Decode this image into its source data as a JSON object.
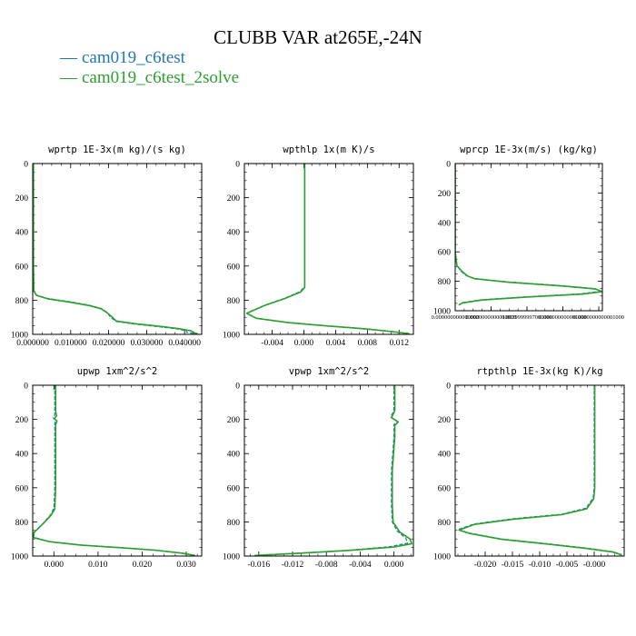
{
  "figure": {
    "title": "CLUBB VAR at265E,-24N",
    "colors": {
      "series1": "#1f77b4",
      "series2": "#2ca02c",
      "axis": "#000000"
    },
    "legend": [
      {
        "symbol": "—",
        "label": "cam019_c6test",
        "color": "#1f77b4"
      },
      {
        "symbol": "—",
        "label": "cam019_c6test_2solve",
        "color": "#2ca02c"
      }
    ]
  },
  "chart_data": [
    {
      "type": "line",
      "title": "wprtp  1E-3x(m kg)/(s kg)",
      "xlim": [
        0,
        0.0445
      ],
      "ylim": [
        0,
        1000
      ],
      "y_inverted": true,
      "xticks": [
        0,
        0.01,
        0.02,
        0.03,
        0.04
      ],
      "xtick_labels": [
        "0.000000",
        "0.010000",
        "0.020000",
        "0.030000",
        "0.040000"
      ],
      "yticks": [
        0,
        200,
        400,
        600,
        800,
        1000
      ],
      "ytick_labels": [
        "0",
        "200",
        "400",
        "600",
        "800",
        "1000"
      ],
      "series": [
        {
          "name": "cam019_c6test",
          "points": [
            [
              0.0002,
              0
            ],
            [
              0.0002,
              200
            ],
            [
              0.0002,
              400
            ],
            [
              0.0002,
              600
            ],
            [
              0.0003,
              740
            ],
            [
              0.001,
              770
            ],
            [
              0.004,
              790
            ],
            [
              0.01,
              810
            ],
            [
              0.015,
              830
            ],
            [
              0.018,
              848
            ],
            [
              0.0195,
              870
            ],
            [
              0.0205,
              900
            ],
            [
              0.022,
              925
            ],
            [
              0.027,
              940
            ],
            [
              0.033,
              955
            ],
            [
              0.038,
              968
            ],
            [
              0.0405,
              980
            ],
            [
              0.0405,
              988
            ],
            [
              0.043,
              998
            ]
          ]
        },
        {
          "name": "cam019_c6test_2solve",
          "points": [
            [
              0.0002,
              0
            ],
            [
              0.0002,
              200
            ],
            [
              0.0002,
              400
            ],
            [
              0.0002,
              600
            ],
            [
              0.0003,
              745
            ],
            [
              0.001,
              772
            ],
            [
              0.004,
              792
            ],
            [
              0.01,
              812
            ],
            [
              0.015,
              832
            ],
            [
              0.018,
              850
            ],
            [
              0.0195,
              872
            ],
            [
              0.021,
              900
            ],
            [
              0.022,
              922
            ],
            [
              0.027,
              938
            ],
            [
              0.033,
              952
            ],
            [
              0.038,
              965
            ],
            [
              0.0415,
              978
            ],
            [
              0.0425,
              990
            ],
            [
              0.0435,
              998
            ]
          ]
        }
      ]
    },
    {
      "type": "line",
      "title": "wpthlp  1x(m K)/s",
      "xlim": [
        -0.0075,
        0.0138
      ],
      "ylim": [
        0,
        1000
      ],
      "y_inverted": true,
      "xticks": [
        -0.004,
        0,
        0.004,
        0.008,
        0.012
      ],
      "xtick_labels": [
        "-0.004",
        "0.000",
        "0.004",
        "0.008",
        "0.012"
      ],
      "yticks": [
        0,
        200,
        400,
        600,
        800,
        1000
      ],
      "ytick_labels": [
        "0",
        "200",
        "400",
        "600",
        "800",
        "1000"
      ],
      "series": [
        {
          "name": "cam019_c6test",
          "points": [
            [
              0.0001,
              0
            ],
            [
              0.0001,
              300
            ],
            [
              0.0001,
              600
            ],
            [
              0.0001,
              720
            ],
            [
              -0.0005,
              750
            ],
            [
              -0.0025,
              790
            ],
            [
              -0.005,
              830
            ],
            [
              -0.0072,
              875
            ],
            [
              -0.006,
              905
            ],
            [
              -0.002,
              930
            ],
            [
              0.003,
              950
            ],
            [
              0.008,
              968
            ],
            [
              0.0115,
              985
            ],
            [
              0.0133,
              996
            ]
          ]
        },
        {
          "name": "cam019_c6test_2solve",
          "points": [
            [
              0.0001,
              0
            ],
            [
              0.0001,
              300
            ],
            [
              0.0001,
              600
            ],
            [
              0.0001,
              725
            ],
            [
              -0.0004,
              752
            ],
            [
              -0.0025,
              792
            ],
            [
              -0.005,
              832
            ],
            [
              -0.0072,
              877
            ],
            [
              -0.006,
              906
            ],
            [
              -0.002,
              931
            ],
            [
              0.003,
              951
            ],
            [
              0.008,
              969
            ],
            [
              0.0115,
              986
            ],
            [
              0.0133,
              997
            ]
          ]
        }
      ]
    },
    {
      "type": "line",
      "title": "wprcp  1E-3x(m/s) (kg/kg)",
      "xlim": [
        0,
        0.0082
      ],
      "ylim": [
        0,
        1000
      ],
      "y_inverted": true,
      "xticks": [
        0,
        0.002,
        0.004,
        0.006,
        0.008
      ],
      "xtick_labels": [
        "0.000000000000000",
        "0.0020000000010000",
        "0.0039999997000000",
        "0.006000000001000",
        "0.0080000000001000"
      ],
      "yticks": [
        0,
        200,
        400,
        600,
        800,
        1000
      ],
      "ytick_labels": [
        "0",
        "200",
        "400",
        "600",
        "800",
        "1000"
      ],
      "series": [
        {
          "name": "cam019_c6test",
          "points": [
            [
              0,
              0
            ],
            [
              0,
              300
            ],
            [
              0,
              600
            ],
            [
              0.0001,
              690
            ],
            [
              0.0003,
              730
            ],
            [
              0.0006,
              760
            ],
            [
              0.001,
              780
            ],
            [
              0.003,
              805
            ],
            [
              0.006,
              830
            ],
            [
              0.0078,
              850
            ],
            [
              0.0081,
              868
            ],
            [
              0.007,
              885
            ],
            [
              0.004,
              905
            ],
            [
              0.0015,
              925
            ],
            [
              0.0004,
              945
            ],
            [
              0.0002,
              960
            ]
          ]
        },
        {
          "name": "cam019_c6test_2solve",
          "points": [
            [
              0,
              0
            ],
            [
              0,
              300
            ],
            [
              0,
              600
            ],
            [
              0.0001,
              695
            ],
            [
              0.0004,
              735
            ],
            [
              0.0007,
              765
            ],
            [
              0.0011,
              783
            ],
            [
              0.003,
              807
            ],
            [
              0.006,
              832
            ],
            [
              0.0078,
              852
            ],
            [
              0.0082,
              870
            ],
            [
              0.0071,
              887
            ],
            [
              0.004,
              907
            ],
            [
              0.0015,
              927
            ],
            [
              0.0004,
              947
            ],
            [
              0.0002,
              962
            ]
          ]
        }
      ]
    },
    {
      "type": "line",
      "title": "upwp  1xm^2/s^2",
      "xlim": [
        -0.0048,
        0.0335
      ],
      "ylim": [
        0,
        1000
      ],
      "y_inverted": true,
      "xticks": [
        0,
        0.01,
        0.02,
        0.03
      ],
      "xtick_labels": [
        "0.000",
        "0.010",
        "0.020",
        "0.030"
      ],
      "yticks": [
        0,
        200,
        400,
        600,
        800,
        1000
      ],
      "ytick_labels": [
        "0",
        "200",
        "400",
        "600",
        "800",
        "1000"
      ],
      "series": [
        {
          "name": "cam019_c6test",
          "points": [
            [
              0.0002,
              0
            ],
            [
              0.0002,
              150
            ],
            [
              0.0002,
              175
            ],
            [
              -0.0002,
              190
            ],
            [
              0.0004,
              205
            ],
            [
              0.0002,
              225
            ],
            [
              0.0002,
              400
            ],
            [
              0.0002,
              600
            ],
            [
              0,
              720
            ],
            [
              -0.0008,
              760
            ],
            [
              -0.0025,
              810
            ],
            [
              -0.0045,
              860
            ],
            [
              -0.0046,
              890
            ],
            [
              -0.001,
              915
            ],
            [
              0.006,
              935
            ],
            [
              0.015,
              950
            ],
            [
              0.023,
              965
            ],
            [
              0.029,
              982
            ],
            [
              0.032,
              996
            ]
          ]
        },
        {
          "name": "cam019_c6test_2solve",
          "points": [
            [
              0.0004,
              0
            ],
            [
              0.0004,
              150
            ],
            [
              0.0006,
              180
            ],
            [
              0.0001,
              195
            ],
            [
              0.0007,
              210
            ],
            [
              0.0004,
              230
            ],
            [
              0.0004,
              400
            ],
            [
              0.0004,
              600
            ],
            [
              0.0002,
              725
            ],
            [
              -0.0007,
              763
            ],
            [
              -0.0025,
              812
            ],
            [
              -0.0045,
              862
            ],
            [
              -0.0046,
              892
            ],
            [
              -0.001,
              916
            ],
            [
              0.006,
              936
            ],
            [
              0.015,
              951
            ],
            [
              0.023,
              966
            ],
            [
              0.029,
              983
            ],
            [
              0.032,
              997
            ]
          ]
        }
      ]
    },
    {
      "type": "line",
      "title": "vpwp  1xm^2/s^2",
      "xlim": [
        -0.0177,
        0.0023
      ],
      "ylim": [
        0,
        1000
      ],
      "y_inverted": true,
      "xticks": [
        -0.016,
        -0.012,
        -0.008,
        -0.004,
        0
      ],
      "xtick_labels": [
        "-0.016",
        "-0.012",
        "-0.008",
        "-0.004",
        "0.000"
      ],
      "yticks": [
        0,
        200,
        400,
        600,
        800,
        1000
      ],
      "ytick_labels": [
        "0",
        "200",
        "400",
        "600",
        "800",
        "1000"
      ],
      "series": [
        {
          "name": "cam019_c6test",
          "points": [
            [
              0,
              0
            ],
            [
              0,
              150
            ],
            [
              -0.0004,
              185
            ],
            [
              0.0004,
              210
            ],
            [
              0,
              230
            ],
            [
              0,
              300
            ],
            [
              -0.0003,
              500
            ],
            [
              -0.0003,
              700
            ],
            [
              -0.0002,
              800
            ],
            [
              0.0004,
              855
            ],
            [
              0.0014,
              895
            ],
            [
              0.0016,
              925
            ],
            [
              -0.0005,
              945
            ],
            [
              -0.005,
              965
            ],
            [
              -0.011,
              982
            ],
            [
              -0.0165,
              996
            ]
          ]
        },
        {
          "name": "cam019_c6test_2solve",
          "points": [
            [
              0.0001,
              0
            ],
            [
              0.0001,
              150
            ],
            [
              -0.0003,
              190
            ],
            [
              0.0005,
              215
            ],
            [
              0.0001,
              235
            ],
            [
              0.0001,
              300
            ],
            [
              -0.0002,
              500
            ],
            [
              -0.0002,
              700
            ],
            [
              -0.0001,
              802
            ],
            [
              0.0007,
              860
            ],
            [
              0.0019,
              900
            ],
            [
              0.0021,
              928
            ],
            [
              0,
              947
            ],
            [
              -0.005,
              966
            ],
            [
              -0.011,
              983
            ],
            [
              -0.0165,
              997
            ]
          ]
        }
      ]
    },
    {
      "type": "line",
      "title": "rtpthlp  1E-3x(kg K)/kg",
      "xlim": [
        -0.0255,
        0.0055
      ],
      "ylim": [
        0,
        1000
      ],
      "y_inverted": true,
      "xticks": [
        -0.02,
        -0.015,
        -0.01,
        -0.005,
        0
      ],
      "xtick_labels": [
        "-0.020",
        "-0.015",
        "-0.010",
        "-0.005",
        "-0.000"
      ],
      "yticks": [
        0,
        200,
        400,
        600,
        800,
        1000
      ],
      "ytick_labels": [
        "0",
        "200",
        "400",
        "600",
        "800",
        "1000"
      ],
      "series": [
        {
          "name": "cam019_c6test",
          "points": [
            [
              0,
              0
            ],
            [
              0,
              300
            ],
            [
              0,
              600
            ],
            [
              -0.0002,
              660
            ],
            [
              -0.0015,
              720
            ],
            [
              -0.006,
              755
            ],
            [
              -0.015,
              782
            ],
            [
              -0.022,
              812
            ],
            [
              -0.025,
              845
            ],
            [
              -0.023,
              865
            ],
            [
              -0.017,
              900
            ],
            [
              -0.008,
              930
            ],
            [
              -0.001,
              955
            ],
            [
              0.0035,
              975
            ],
            [
              0.005,
              992
            ]
          ]
        },
        {
          "name": "cam019_c6test_2solve",
          "points": [
            [
              0.0001,
              0
            ],
            [
              0.0001,
              300
            ],
            [
              0.0001,
              600
            ],
            [
              -0.0001,
              665
            ],
            [
              -0.0014,
              724
            ],
            [
              -0.006,
              758
            ],
            [
              -0.015,
              785
            ],
            [
              -0.022,
              815
            ],
            [
              -0.0248,
              848
            ],
            [
              -0.0228,
              868
            ],
            [
              -0.017,
              902
            ],
            [
              -0.008,
              932
            ],
            [
              -0.001,
              957
            ],
            [
              0.0035,
              977
            ],
            [
              0.005,
              993
            ]
          ]
        }
      ]
    }
  ]
}
